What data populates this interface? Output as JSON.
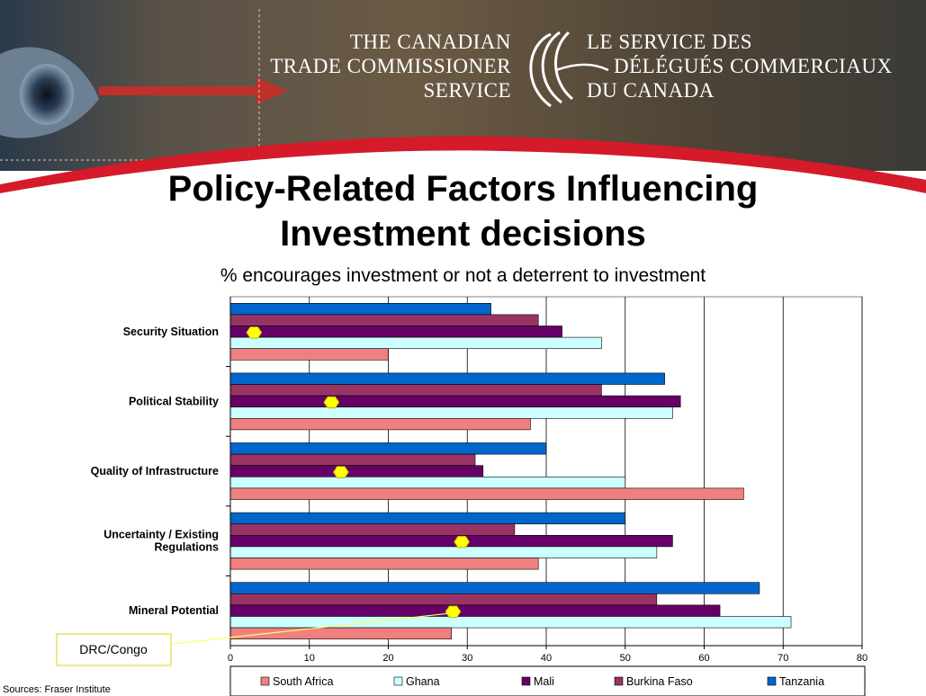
{
  "header": {
    "org_en": [
      "THE CANADIAN",
      "TRADE COMMISSIONER",
      "SERVICE"
    ],
    "org_fr": [
      "LE SERVICE DES",
      "DÉLÉGUÉS COMMERCIAUX",
      "DU CANADA"
    ],
    "logo_icon": "maple-leaf-swirl-logo"
  },
  "title_line1": "Policy-Related Factors Influencing",
  "title_line2": "Investment decisions",
  "subtitle": "% encourages investment or not a deterrent to investment",
  "source": "Sources:  Fraser Institute",
  "colors": {
    "South Africa": "#f08080",
    "Ghana": "#ccffff",
    "Mali": "#660066",
    "Burkina Faso": "#993366",
    "Tanzania": "#0066cc",
    "marker": "#ffff00",
    "red_arc": "#d51a2a"
  },
  "chart_data": {
    "type": "bar",
    "orientation": "horizontal",
    "categories": [
      "Security Situation",
      "Political Stability",
      "Quality of Infrastructure",
      "Uncertainty / Existing Regulations",
      "Mineral Potential"
    ],
    "category_lines": [
      [
        "Security Situation"
      ],
      [
        "Political Stability"
      ],
      [
        "Quality of Infrastructure"
      ],
      [
        "Uncertainty / Existing",
        "Regulations"
      ],
      [
        "Mineral Potential"
      ]
    ],
    "series": [
      {
        "name": "Tanzania",
        "values": [
          33,
          55,
          40,
          50,
          67
        ]
      },
      {
        "name": "Burkina Faso",
        "values": [
          39,
          47,
          31,
          36,
          54
        ]
      },
      {
        "name": "Mali",
        "values": [
          42,
          57,
          32,
          56,
          62
        ]
      },
      {
        "name": "Ghana",
        "values": [
          47,
          56,
          50,
          54,
          71
        ]
      },
      {
        "name": "South Africa",
        "values": [
          20,
          38,
          65,
          39,
          28
        ]
      }
    ],
    "legend_order": [
      "South Africa",
      "Ghana",
      "Mali",
      "Burkina Faso",
      "Tanzania"
    ],
    "markers": {
      "name": "DRC/Congo",
      "values": [
        3,
        12.8,
        14,
        29.3,
        28.2
      ]
    },
    "annotation": "DRC/Congo",
    "xlim": [
      0,
      80
    ],
    "xticks": [
      0,
      10,
      20,
      30,
      40,
      50,
      60,
      70,
      80
    ],
    "grid": "vertical",
    "legend_position": "bottom"
  }
}
